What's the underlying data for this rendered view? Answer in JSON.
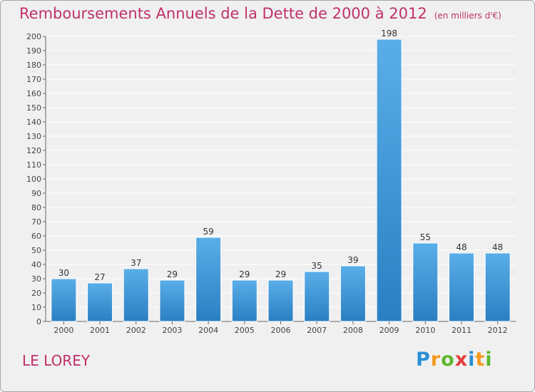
{
  "header": {
    "title": "Remboursements Annuels de la Dette de 2000 à 2012",
    "subtitle": "(en milliers d'€)"
  },
  "footer": {
    "city": "LE LOREY",
    "logo_letters": [
      "P",
      "r",
      "o",
      "x",
      "i",
      "t",
      "i"
    ]
  },
  "colors": {
    "bar_top": "#5aaee8",
    "bar_bottom": "#2a7fc2",
    "title": "#c0306a",
    "grid": "#ffffff",
    "plot_bg": "#f0f0f0"
  },
  "chart_data": {
    "type": "bar",
    "title": "Remboursements Annuels de la Dette de 2000 à 2012",
    "subtitle": "(en milliers d'€)",
    "categories": [
      "2000",
      "2001",
      "2002",
      "2003",
      "2004",
      "2005",
      "2006",
      "2007",
      "2008",
      "2009",
      "2010",
      "2011",
      "2012"
    ],
    "values": [
      30,
      27,
      37,
      29,
      59,
      29,
      29,
      35,
      39,
      198,
      55,
      48,
      48
    ],
    "ylim": [
      0,
      200
    ],
    "yticks": [
      0,
      10,
      20,
      30,
      40,
      50,
      60,
      70,
      80,
      90,
      100,
      110,
      120,
      130,
      140,
      150,
      160,
      170,
      180,
      190,
      200
    ],
    "grid": true,
    "legend": "none"
  }
}
